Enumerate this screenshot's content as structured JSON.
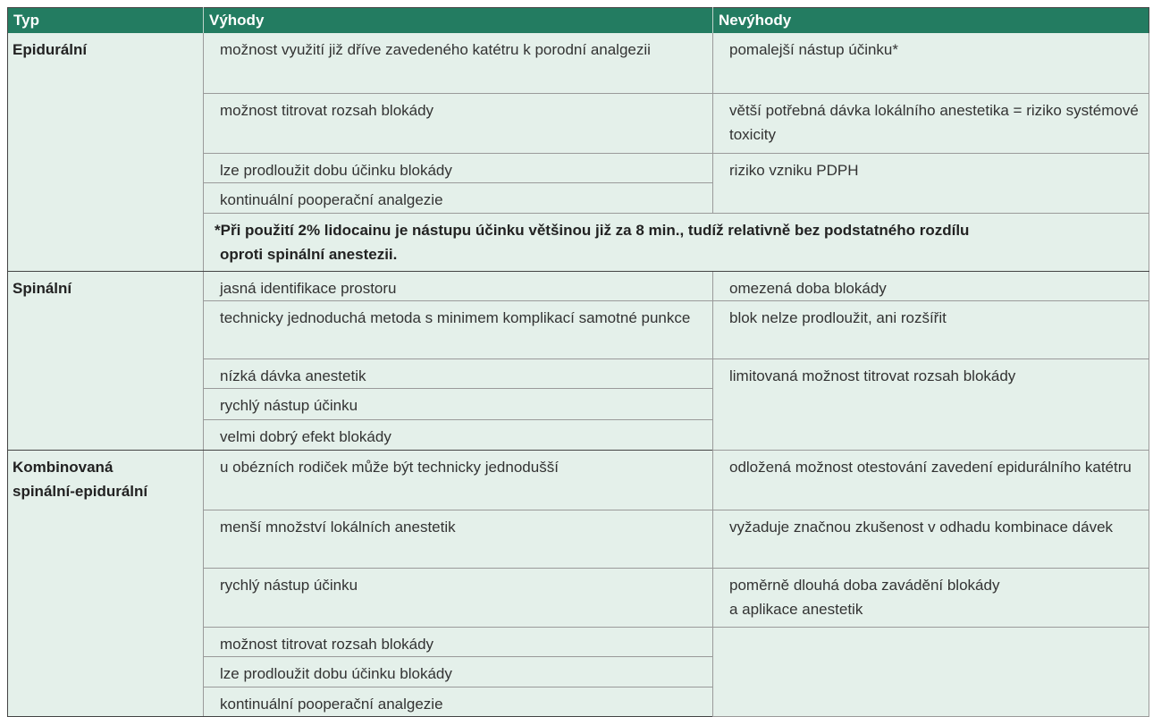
{
  "header": {
    "col_type": "Typ",
    "col_advantages": "Výhody",
    "col_disadvantages": "Nevýhody"
  },
  "epidural": {
    "type": "Epidurální",
    "adv": [
      "možnost využití již dříve zavedeného katétru k porodní analgezii",
      "možnost titrovat rozsah blokády",
      "lze prodloužit dobu účinku blokády",
      "kontinuální pooperační analgezie"
    ],
    "dis": [
      "pomalejší nástup účinku*",
      "větší potřebná dávka lokálního anestetika = riziko systémové toxicity",
      "riziko vzniku PDPH"
    ],
    "note_line1": "*Při použití 2% lidocainu je nástupu účinku většinou již za 8 min., tudíž relativně bez podstatného rozdílu",
    "note_line2": "oproti spinální anestezii."
  },
  "spinal": {
    "type": "Spinální",
    "adv": [
      "jasná identifikace prostoru",
      "technicky jednoduchá metoda s minimem komplikací samotné punkce",
      "nízká dávka anestetik",
      "rychlý nástup účinku",
      "velmi dobrý efekt blokády"
    ],
    "dis": [
      "omezená doba blokády",
      "blok nelze prodloužit, ani rozšířit",
      "limitovaná možnost titrovat rozsah blokády"
    ]
  },
  "combined": {
    "type_line1": "Kombinovaná",
    "type_line2": "spinální-epidurální",
    "adv": [
      "u obézních rodiček může být technicky jednodušší",
      "menší množství lokálních anestetik",
      "rychlý nástup účinku",
      "možnost titrovat rozsah blokády",
      "lze prodloužit dobu účinku blokády",
      "kontinuální pooperační analgezie"
    ],
    "dis": [
      "odložená možnost otestování zavedení epidurálního katétru",
      "vyžaduje značnou zkušenost v odhadu kombinace dávek",
      "poměrně dlouhá doba zavádění blokády",
      "a aplikace anestetik"
    ]
  }
}
